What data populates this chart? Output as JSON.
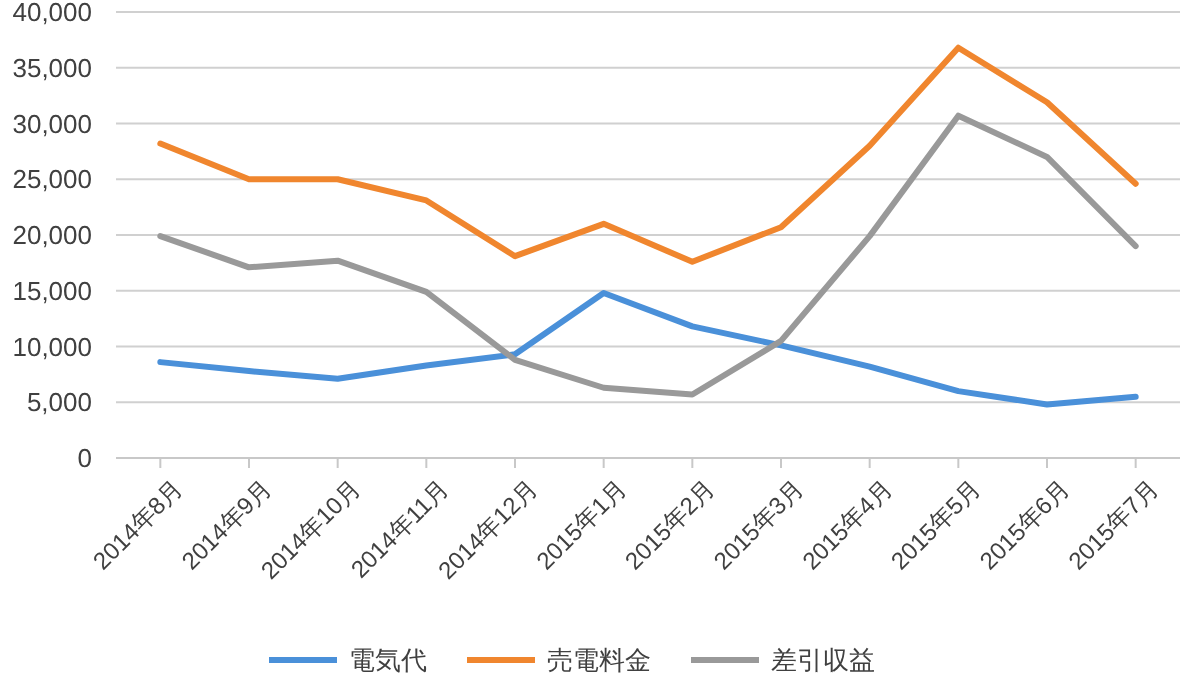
{
  "chart_data": {
    "type": "line",
    "categories": [
      "2014年8月",
      "2014年9月",
      "2014年10月",
      "2014年11月",
      "2014年12月",
      "2015年1月",
      "2015年2月",
      "2015年3月",
      "2015年4月",
      "2015年5月",
      "2015年6月",
      "2015年7月"
    ],
    "series": [
      {
        "name": "電気代",
        "color": "#4a90d9",
        "values": [
          8600,
          7800,
          7100,
          8300,
          9300,
          14800,
          11800,
          10100,
          8200,
          6000,
          4800,
          5500
        ]
      },
      {
        "name": "売電料金",
        "color": "#f0862e",
        "values": [
          28200,
          25000,
          25000,
          23100,
          18100,
          21000,
          17600,
          20700,
          28000,
          36800,
          31900,
          24600
        ]
      },
      {
        "name": "差引収益",
        "color": "#999999",
        "values": [
          19900,
          17100,
          17700,
          14900,
          8800,
          6300,
          5700,
          10500,
          19900,
          30700,
          27000,
          19000
        ]
      }
    ],
    "ylim": [
      0,
      40000
    ],
    "yticks": [
      {
        "value": 0,
        "label": "0"
      },
      {
        "value": 5000,
        "label": "5,000"
      },
      {
        "value": 10000,
        "label": "10,000"
      },
      {
        "value": 15000,
        "label": "15,000"
      },
      {
        "value": 20000,
        "label": "20,000"
      },
      {
        "value": 25000,
        "label": "25,000"
      },
      {
        "value": 30000,
        "label": "30,000"
      },
      {
        "value": 35000,
        "label": "35,000"
      },
      {
        "value": 40000,
        "label": "40,000"
      }
    ],
    "grid": "y",
    "legend": "bottom",
    "marker": "none",
    "line_style": "solid"
  }
}
